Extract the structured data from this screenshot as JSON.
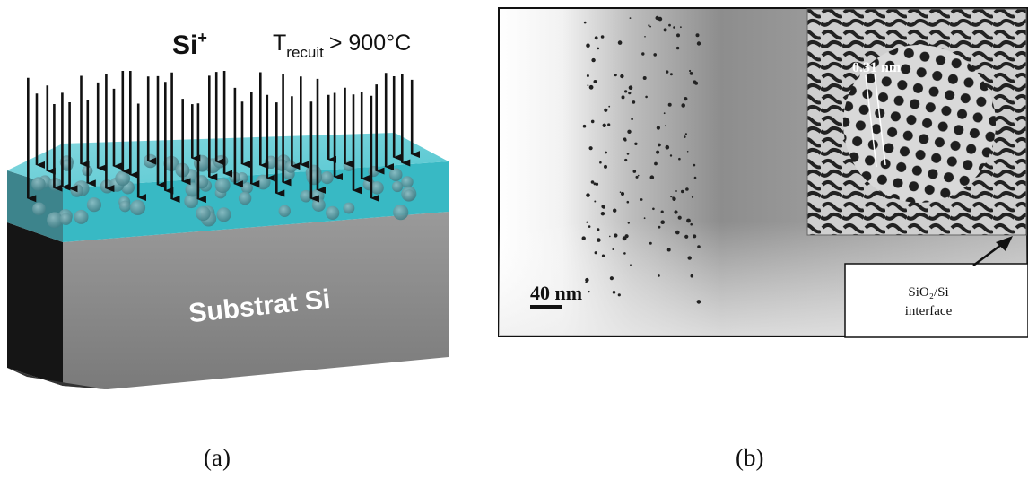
{
  "panel_a": {
    "ion_label": "Si",
    "ion_charge": "+",
    "anneal_label_main": "T",
    "anneal_label_sub": "recuit",
    "anneal_condition": "> 900°C",
    "substrate_label": "Substrat Si",
    "colors": {
      "oxide": "#2fb8c4",
      "substrate": "#8c8c8c",
      "nanocrystal": "#4a8a92",
      "arrow": "#111111"
    }
  },
  "panel_b": {
    "lattice_spacing_label": "0.31 nm",
    "scale_bar_label": "40 nm",
    "interface_label_line1": "SiO₂/Si",
    "interface_label_line2": "interface"
  },
  "captions": {
    "a": "(a)",
    "b": "(b)"
  }
}
